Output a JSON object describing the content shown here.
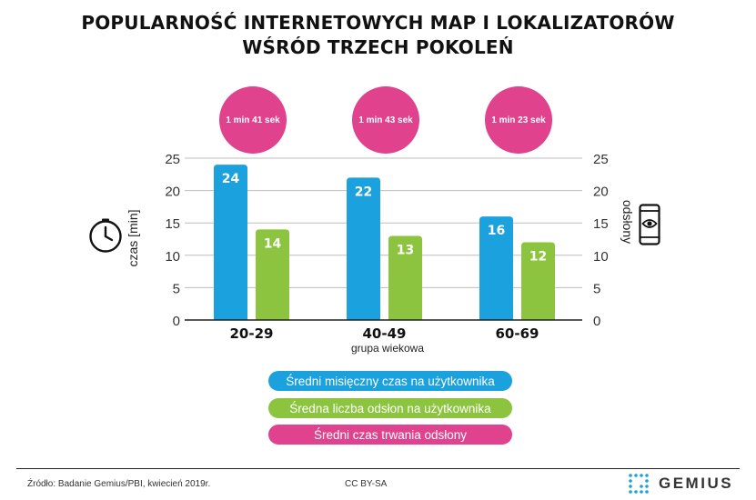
{
  "title": {
    "line1": "POPULARNOŚĆ INTERNETOWYCH MAP I LOKALIZATORÓW",
    "line2": "WŚRÓD TRZECH POKOLEŃ"
  },
  "chart_data": {
    "type": "bar",
    "categories": [
      "20-29",
      "40-49",
      "60-69"
    ],
    "series": [
      {
        "name": "Średni misięczny czas na użytkownika",
        "values": [
          24,
          22,
          16
        ],
        "color": "#1ba1dd",
        "axis": "left"
      },
      {
        "name": "Średna liczba odsłon na użytkownika",
        "values": [
          14,
          13,
          12
        ],
        "color": "#8cc43f",
        "axis": "right"
      },
      {
        "name": "Średni czas trwania odsłony",
        "values": [
          "1 min 41 sek",
          "1 min 43 sek",
          "1 min 23 sek"
        ],
        "color": "#e0428d"
      }
    ],
    "xlabel": "grupa wiekowa",
    "ylabel_left": "czas [min]",
    "ylabel_right": "odsłony",
    "ylim": [
      0,
      25
    ],
    "yticks": [
      0,
      5,
      10,
      15,
      20,
      25
    ],
    "grid": true,
    "legend_position": "bottom"
  },
  "icons": {
    "left_axis": "clock-icon",
    "right_axis": "phone-eye-icon",
    "logo": "gemius-dots-icon"
  },
  "footer": {
    "source": "Źródło: Badanie Gemius/PBI, kwiecień 2019r.",
    "license": "CC BY-SA",
    "logo_text": "GEMIUS"
  }
}
